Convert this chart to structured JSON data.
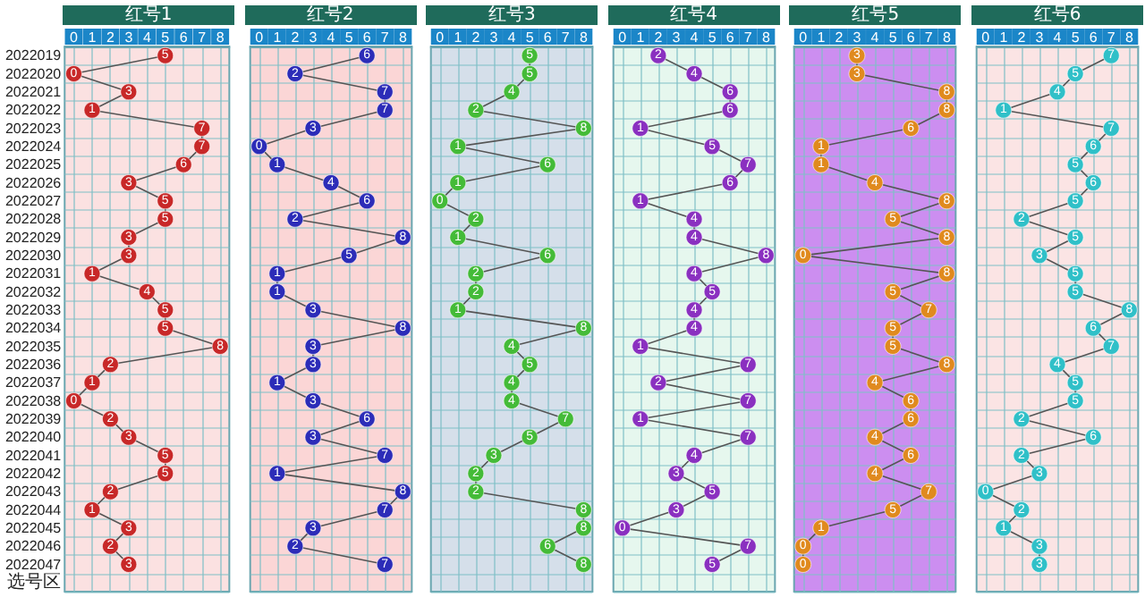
{
  "chart_data": [
    {
      "type": "line",
      "title": "红号1",
      "orientation": "horizontal",
      "categories": [
        "2022019",
        "2022020",
        "2022021",
        "2022022",
        "2022023",
        "2022024",
        "2022025",
        "2022026",
        "2022027",
        "2022028",
        "2022029",
        "2022030",
        "2022031",
        "2022032",
        "2022033",
        "2022034",
        "2022035",
        "2022036",
        "2022037",
        "2022038",
        "2022039",
        "2022040",
        "2022041",
        "2022042",
        "2022043",
        "2022044",
        "2022045",
        "2022046",
        "2022047",
        "选号区"
      ],
      "series": [
        {
          "color": "#c82828",
          "values": [
            5,
            0,
            3,
            1,
            7,
            7,
            6,
            3,
            5,
            5,
            3,
            3,
            1,
            4,
            5,
            5,
            8,
            2,
            1,
            0,
            2,
            3,
            5,
            5,
            2,
            1,
            3,
            2,
            3,
            null
          ]
        }
      ],
      "xlim": [
        -0.5,
        8.5
      ],
      "xticks": [
        0,
        1,
        2,
        3,
        4,
        5,
        6,
        7,
        8
      ],
      "grid": true,
      "marker": "circle",
      "line_style": "solid",
      "data_labels": true
    },
    {
      "type": "line",
      "title": "红号2",
      "orientation": "horizontal",
      "categories": [
        null,
        null,
        null,
        null,
        null,
        null,
        null,
        null,
        null,
        null,
        null,
        null,
        null,
        null,
        null,
        null,
        null,
        null,
        null,
        null,
        null,
        null,
        null,
        null,
        null,
        null,
        null,
        null,
        null,
        null
      ],
      "series": [
        {
          "color": "#2c2cb8",
          "values": [
            6,
            2,
            7,
            7,
            3,
            0,
            1,
            4,
            6,
            2,
            8,
            5,
            1,
            1,
            3,
            8,
            3,
            3,
            1,
            3,
            6,
            3,
            7,
            1,
            8,
            7,
            3,
            2,
            7,
            null
          ]
        }
      ],
      "xlim": [
        -0.5,
        8.5
      ],
      "xticks": [
        0,
        1,
        2,
        3,
        4,
        5,
        6,
        7,
        8
      ],
      "grid": true,
      "marker": "circle",
      "line_style": "solid",
      "data_labels": true,
      "tick_labels": "x"
    },
    {
      "type": "line",
      "title": "红号3",
      "orientation": "horizontal",
      "categories": [
        null,
        null,
        null,
        null,
        null,
        null,
        null,
        null,
        null,
        null,
        null,
        null,
        null,
        null,
        null,
        null,
        null,
        null,
        null,
        null,
        null,
        null,
        null,
        null,
        null,
        null,
        null,
        null,
        null,
        null
      ],
      "series": [
        {
          "color": "#44bb38",
          "values": [
            5,
            5,
            4,
            2,
            8,
            1,
            6,
            1,
            0,
            2,
            1,
            6,
            2,
            2,
            1,
            8,
            4,
            5,
            4,
            4,
            7,
            5,
            3,
            2,
            2,
            8,
            8,
            6,
            8,
            null
          ]
        }
      ],
      "xlim": [
        -0.5,
        8.5
      ],
      "xticks": [
        0,
        1,
        2,
        3,
        4,
        5,
        6,
        7,
        8
      ],
      "grid": true,
      "marker": "circle",
      "line_style": "solid",
      "data_labels": true,
      "tick_labels": "x"
    },
    {
      "type": "line",
      "title": "红号4",
      "orientation": "horizontal",
      "categories": [
        null,
        null,
        null,
        null,
        null,
        null,
        null,
        null,
        null,
        null,
        null,
        null,
        null,
        null,
        null,
        null,
        null,
        null,
        null,
        null,
        null,
        null,
        null,
        null,
        null,
        null,
        null,
        null,
        null,
        null
      ],
      "series": [
        {
          "color": "#8a30c0",
          "values": [
            2,
            4,
            6,
            6,
            1,
            5,
            7,
            6,
            1,
            4,
            4,
            8,
            4,
            5,
            4,
            4,
            1,
            7,
            2,
            7,
            1,
            7,
            4,
            3,
            5,
            3,
            0,
            7,
            5,
            null
          ]
        }
      ],
      "xlim": [
        -0.5,
        8.5
      ],
      "xticks": [
        0,
        1,
        2,
        3,
        4,
        5,
        6,
        7,
        8
      ],
      "grid": true,
      "marker": "circle",
      "line_style": "solid",
      "data_labels": true,
      "tick_labels": "x"
    },
    {
      "type": "line",
      "title": "红号5",
      "orientation": "horizontal",
      "categories": [
        null,
        null,
        null,
        null,
        null,
        null,
        null,
        null,
        null,
        null,
        null,
        null,
        null,
        null,
        null,
        null,
        null,
        null,
        null,
        null,
        null,
        null,
        null,
        null,
        null,
        null,
        null,
        null,
        null,
        null
      ],
      "series": [
        {
          "color": "#e08a1e",
          "values": [
            3,
            3,
            8,
            8,
            6,
            1,
            1,
            4,
            8,
            5,
            8,
            0,
            8,
            5,
            7,
            5,
            5,
            8,
            4,
            6,
            6,
            4,
            6,
            4,
            7,
            5,
            1,
            0,
            0,
            null
          ]
        }
      ],
      "xlim": [
        -0.5,
        8.5
      ],
      "xticks": [
        0,
        1,
        2,
        3,
        4,
        5,
        6,
        7,
        8
      ],
      "grid": true,
      "marker": "circle",
      "line_style": "solid",
      "data_labels": true,
      "tick_labels": "x"
    },
    {
      "type": "line",
      "title": "红号6",
      "orientation": "horizontal",
      "categories": [
        null,
        null,
        null,
        null,
        null,
        null,
        null,
        null,
        null,
        null,
        null,
        null,
        null,
        null,
        null,
        null,
        null,
        null,
        null,
        null,
        null,
        null,
        null,
        null,
        null,
        null,
        null,
        null,
        null,
        null
      ],
      "series": [
        {
          "color": "#30c0c8",
          "values": [
            7,
            5,
            4,
            1,
            7,
            6,
            5,
            6,
            5,
            2,
            5,
            3,
            5,
            5,
            8,
            6,
            7,
            4,
            5,
            5,
            2,
            6,
            2,
            3,
            0,
            2,
            1,
            3,
            3,
            null
          ]
        }
      ],
      "xlim": [
        -0.5,
        8.5
      ],
      "xticks": [
        0,
        1,
        2,
        3,
        4,
        5,
        6,
        7,
        8
      ],
      "grid": true,
      "marker": "circle",
      "line_style": "solid",
      "data_labels": true,
      "tick_labels": "x"
    }
  ]
}
